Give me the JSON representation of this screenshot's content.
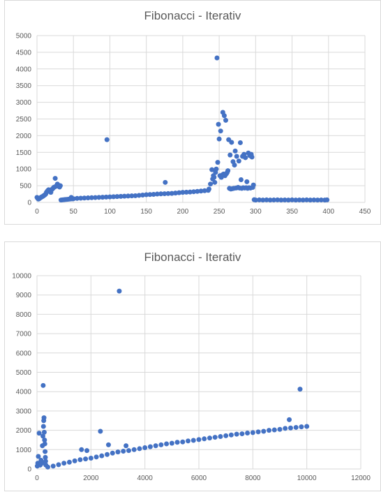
{
  "chart_data": [
    {
      "type": "scatter",
      "title": "Fibonacci - Iterativ",
      "xlabel": "",
      "ylabel": "",
      "xlim": [
        0,
        450
      ],
      "ylim": [
        0,
        5000
      ],
      "xticks": [
        0,
        50,
        100,
        150,
        200,
        250,
        300,
        350,
        400,
        450
      ],
      "yticks": [
        0,
        500,
        1000,
        1500,
        2000,
        2500,
        3000,
        3500,
        4000,
        4500,
        5000
      ],
      "grid": true,
      "legend": "none",
      "color": "#4472c4",
      "series": [
        {
          "points": [
            [
              0,
              150
            ],
            [
              1,
              120
            ],
            [
              2,
              100
            ],
            [
              3,
              110
            ],
            [
              4,
              130
            ],
            [
              5,
              140
            ],
            [
              6,
              160
            ],
            [
              7,
              170
            ],
            [
              8,
              180
            ],
            [
              9,
              200
            ],
            [
              10,
              210
            ],
            [
              11,
              230
            ],
            [
              12,
              250
            ],
            [
              13,
              300
            ],
            [
              14,
              330
            ],
            [
              15,
              360
            ],
            [
              16,
              380
            ],
            [
              17,
              370
            ],
            [
              18,
              320
            ],
            [
              19,
              300
            ],
            [
              20,
              380
            ],
            [
              21,
              400
            ],
            [
              22,
              420
            ],
            [
              23,
              450
            ],
            [
              24,
              460
            ],
            [
              25,
              720
            ],
            [
              26,
              480
            ],
            [
              27,
              500
            ],
            [
              28,
              550
            ],
            [
              29,
              520
            ],
            [
              30,
              480
            ],
            [
              31,
              460
            ],
            [
              32,
              500
            ],
            [
              33,
              70
            ],
            [
              35,
              75
            ],
            [
              37,
              80
            ],
            [
              39,
              85
            ],
            [
              41,
              90
            ],
            [
              43,
              95
            ],
            [
              45,
              100
            ],
            [
              47,
              150
            ],
            [
              48,
              105
            ],
            [
              50,
              110
            ],
            [
              55,
              120
            ],
            [
              60,
              125
            ],
            [
              65,
              130
            ],
            [
              70,
              135
            ],
            [
              75,
              140
            ],
            [
              80,
              145
            ],
            [
              85,
              150
            ],
            [
              90,
              155
            ],
            [
              95,
              160
            ],
            [
              96,
              1880
            ],
            [
              100,
              165
            ],
            [
              105,
              170
            ],
            [
              110,
              175
            ],
            [
              115,
              180
            ],
            [
              120,
              185
            ],
            [
              125,
              190
            ],
            [
              130,
              195
            ],
            [
              135,
              200
            ],
            [
              140,
              210
            ],
            [
              145,
              220
            ],
            [
              150,
              230
            ],
            [
              155,
              235
            ],
            [
              160,
              240
            ],
            [
              165,
              250
            ],
            [
              170,
              255
            ],
            [
              175,
              260
            ],
            [
              176,
              600
            ],
            [
              180,
              265
            ],
            [
              185,
              270
            ],
            [
              190,
              280
            ],
            [
              195,
              290
            ],
            [
              200,
              300
            ],
            [
              205,
              305
            ],
            [
              210,
              310
            ],
            [
              215,
              320
            ],
            [
              220,
              330
            ],
            [
              225,
              340
            ],
            [
              230,
              350
            ],
            [
              235,
              360
            ],
            [
              236,
              400
            ],
            [
              238,
              550
            ],
            [
              240,
              980
            ],
            [
              241,
              700
            ],
            [
              242,
              800
            ],
            [
              243,
              750
            ],
            [
              244,
              600
            ],
            [
              245,
              900
            ],
            [
              246,
              1000
            ],
            [
              247,
              4330
            ],
            [
              248,
              1200
            ],
            [
              249,
              2340
            ],
            [
              250,
              1900
            ],
            [
              251,
              800
            ],
            [
              252,
              2140
            ],
            [
              253,
              750
            ],
            [
              254,
              820
            ],
            [
              255,
              2700
            ],
            [
              256,
              850
            ],
            [
              257,
              2600
            ],
            [
              258,
              800
            ],
            [
              259,
              2460
            ],
            [
              260,
              860
            ],
            [
              261,
              900
            ],
            [
              262,
              950
            ],
            [
              263,
              1880
            ],
            [
              264,
              420
            ],
            [
              265,
              1420
            ],
            [
              266,
              400
            ],
            [
              267,
              1800
            ],
            [
              268,
              410
            ],
            [
              269,
              1220
            ],
            [
              270,
              420
            ],
            [
              271,
              1120
            ],
            [
              272,
              1540
            ],
            [
              273,
              430
            ],
            [
              274,
              1380
            ],
            [
              275,
              440
            ],
            [
              276,
              450
            ],
            [
              277,
              1240
            ],
            [
              278,
              430
            ],
            [
              279,
              1790
            ],
            [
              280,
              680
            ],
            [
              281,
              420
            ],
            [
              282,
              1380
            ],
            [
              283,
              440
            ],
            [
              284,
              1440
            ],
            [
              285,
              430
            ],
            [
              286,
              1340
            ],
            [
              287,
              440
            ],
            [
              288,
              620
            ],
            [
              289,
              420
            ],
            [
              290,
              1480
            ],
            [
              291,
              440
            ],
            [
              292,
              1400
            ],
            [
              293,
              430
            ],
            [
              294,
              1440
            ],
            [
              295,
              1360
            ],
            [
              296,
              450
            ],
            [
              297,
              520
            ],
            [
              298,
              80
            ],
            [
              300,
              70
            ],
            [
              305,
              75
            ],
            [
              310,
              70
            ],
            [
              315,
              75
            ],
            [
              320,
              70
            ],
            [
              325,
              72
            ],
            [
              330,
              75
            ],
            [
              335,
              70
            ],
            [
              340,
              72
            ],
            [
              345,
              70
            ],
            [
              350,
              75
            ],
            [
              355,
              70
            ],
            [
              360,
              72
            ],
            [
              365,
              70
            ],
            [
              370,
              75
            ],
            [
              375,
              70
            ],
            [
              380,
              72
            ],
            [
              385,
              70
            ],
            [
              390,
              72
            ],
            [
              395,
              70
            ],
            [
              398,
              75
            ]
          ]
        }
      ]
    },
    {
      "type": "scatter",
      "title": "Fibonacci - Iterativ",
      "xlabel": "",
      "ylabel": "",
      "xlim": [
        0,
        12000
      ],
      "ylim": [
        0,
        10000
      ],
      "xticks": [
        0,
        2000,
        4000,
        6000,
        8000,
        10000,
        12000
      ],
      "yticks": [
        0,
        1000,
        2000,
        3000,
        4000,
        5000,
        6000,
        7000,
        8000,
        9000,
        10000
      ],
      "grid": true,
      "legend": "none",
      "color": "#4472c4",
      "series": [
        {
          "points": [
            [
              10,
              150
            ],
            [
              30,
              300
            ],
            [
              50,
              650
            ],
            [
              80,
              1850
            ],
            [
              120,
              200
            ],
            [
              150,
              450
            ],
            [
              180,
              300
            ],
            [
              200,
              1200
            ],
            [
              220,
              1700
            ],
            [
              230,
              4320
            ],
            [
              240,
              2200
            ],
            [
              250,
              2500
            ],
            [
              260,
              2650
            ],
            [
              270,
              1900
            ],
            [
              280,
              1500
            ],
            [
              290,
              1300
            ],
            [
              300,
              900
            ],
            [
              310,
              600
            ],
            [
              320,
              400
            ],
            [
              330,
              200
            ],
            [
              400,
              100
            ],
            [
              600,
              150
            ],
            [
              800,
              220
            ],
            [
              1000,
              300
            ],
            [
              1200,
              350
            ],
            [
              1400,
              420
            ],
            [
              1600,
              480
            ],
            [
              1650,
              1000
            ],
            [
              1800,
              520
            ],
            [
              1850,
              950
            ],
            [
              2000,
              560
            ],
            [
              2200,
              620
            ],
            [
              2350,
              1950
            ],
            [
              2400,
              680
            ],
            [
              2600,
              750
            ],
            [
              2650,
              1250
            ],
            [
              2800,
              820
            ],
            [
              3000,
              880
            ],
            [
              3050,
              9200
            ],
            [
              3200,
              920
            ],
            [
              3300,
              1200
            ],
            [
              3400,
              950
            ],
            [
              3600,
              1000
            ],
            [
              3800,
              1050
            ],
            [
              4000,
              1100
            ],
            [
              4200,
              1150
            ],
            [
              4400,
              1200
            ],
            [
              4600,
              1250
            ],
            [
              4800,
              1300
            ],
            [
              5000,
              1330
            ],
            [
              5200,
              1380
            ],
            [
              5400,
              1400
            ],
            [
              5600,
              1450
            ],
            [
              5800,
              1480
            ],
            [
              6000,
              1520
            ],
            [
              6200,
              1560
            ],
            [
              6400,
              1600
            ],
            [
              6600,
              1640
            ],
            [
              6800,
              1680
            ],
            [
              7000,
              1720
            ],
            [
              7200,
              1760
            ],
            [
              7400,
              1800
            ],
            [
              7600,
              1820
            ],
            [
              7800,
              1860
            ],
            [
              8000,
              1880
            ],
            [
              8200,
              1920
            ],
            [
              8400,
              1950
            ],
            [
              8600,
              2000
            ],
            [
              8800,
              2020
            ],
            [
              9000,
              2050
            ],
            [
              9200,
              2100
            ],
            [
              9350,
              2550
            ],
            [
              9400,
              2120
            ],
            [
              9600,
              2150
            ],
            [
              9750,
              4130
            ],
            [
              9800,
              2180
            ],
            [
              10000,
              2200
            ]
          ]
        }
      ]
    }
  ]
}
